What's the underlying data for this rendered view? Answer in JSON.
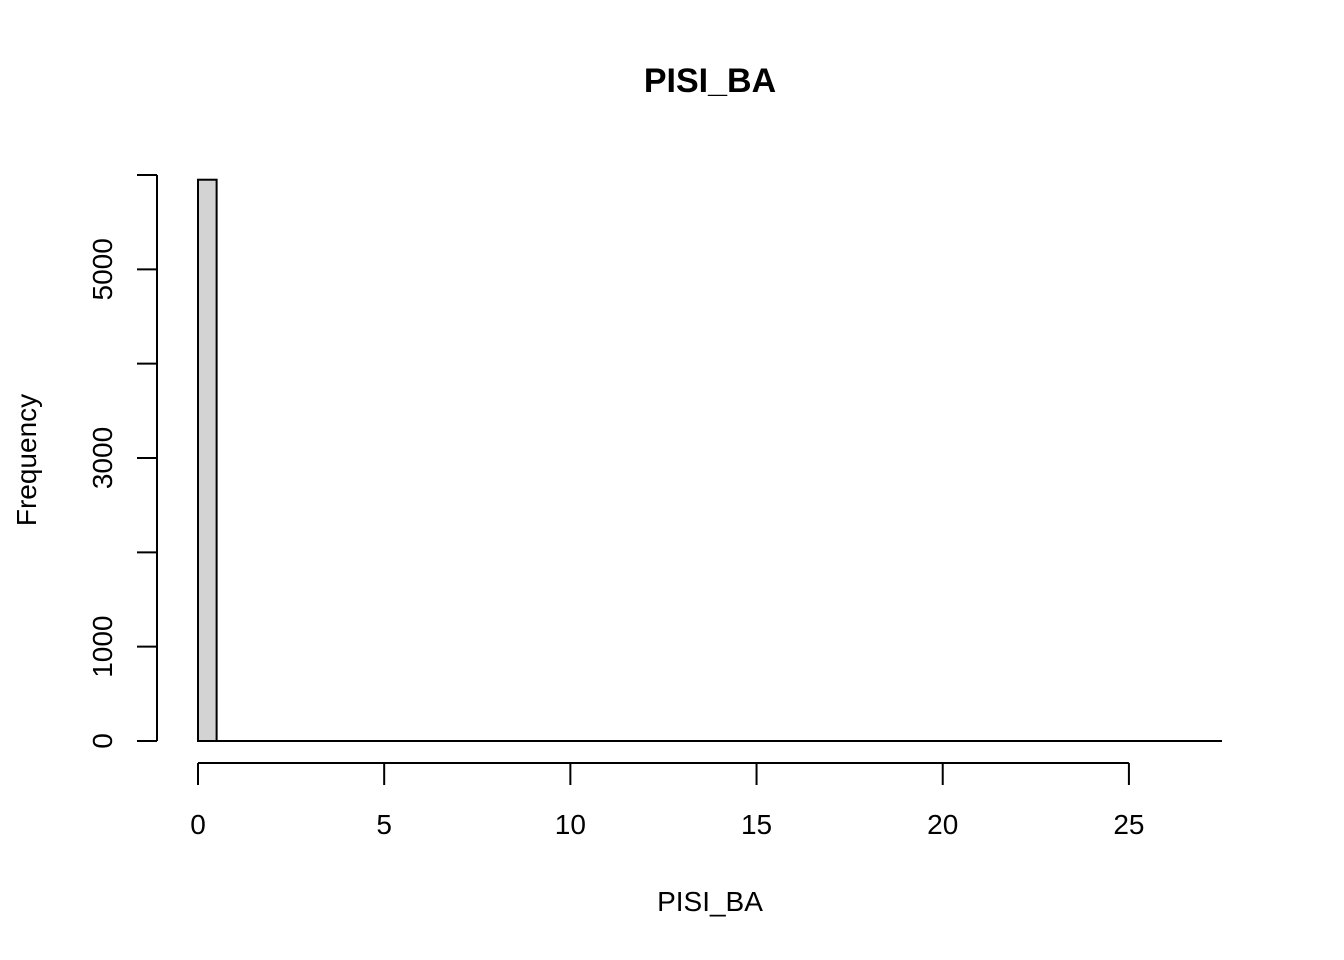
{
  "chart_data": {
    "type": "bar",
    "title": "PISI_BA",
    "xlabel": "PISI_BA",
    "ylabel": "Frequency",
    "bin_edges": [
      0,
      0.5,
      1,
      1.5,
      2,
      2.5,
      3,
      3.5,
      4,
      4.5,
      5,
      5.5,
      6,
      6.5,
      7,
      7.5,
      8,
      8.5,
      9,
      9.5,
      10,
      10.5,
      11,
      11.5,
      12,
      12.5,
      13,
      13.5,
      14,
      14.5,
      15,
      15.5,
      16,
      16.5,
      17,
      17.5,
      18,
      18.5,
      19,
      19.5,
      20,
      20.5,
      21,
      21.5,
      22,
      22.5,
      23,
      23.5,
      24,
      24.5,
      25,
      25.5,
      26,
      26.5,
      27,
      27.5
    ],
    "values": [
      5950,
      0,
      0,
      0,
      0,
      0,
      0,
      0,
      0,
      0,
      0,
      0,
      0,
      0,
      0,
      0,
      0,
      0,
      0,
      0,
      0,
      0,
      0,
      0,
      0,
      0,
      0,
      0,
      0,
      0,
      0,
      0,
      0,
      0,
      0,
      0,
      0,
      0,
      0,
      0,
      0,
      0,
      0,
      0,
      0,
      0,
      0,
      0,
      0,
      0,
      0,
      0,
      0,
      0,
      0
    ],
    "xlim": [
      0,
      27.5
    ],
    "ylim": [
      0,
      6000
    ],
    "x_ticks": [
      0,
      5,
      10,
      15,
      20,
      25
    ],
    "x_tick_labels": [
      "0",
      "5",
      "10",
      "15",
      "20",
      "25"
    ],
    "y_ticks": [
      0,
      1000,
      2000,
      3000,
      4000,
      5000,
      6000
    ],
    "y_tick_labels": [
      "0",
      "1000",
      "",
      "3000",
      "",
      "5000",
      ""
    ],
    "bar_fill": "#d3d3d3",
    "grid": false,
    "legend": "none"
  }
}
